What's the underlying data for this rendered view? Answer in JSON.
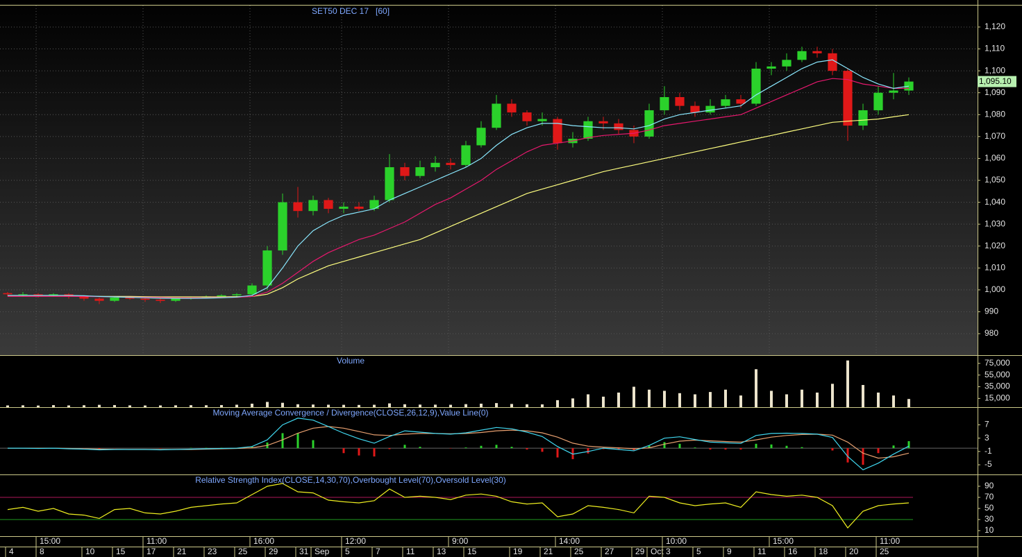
{
  "chart_data": [
    {
      "type": "candlestick",
      "title": "SET50 DEC 17   [60]",
      "categories": [
        "4",
        null,
        "8",
        null,
        null,
        "10",
        null,
        "15",
        null,
        "17",
        null,
        "21",
        null,
        "23",
        null,
        "25",
        null,
        "29",
        null,
        "31",
        "Sep",
        null,
        "5",
        null,
        "7",
        null,
        "11",
        null,
        "13",
        null,
        "15",
        null,
        null,
        "19",
        null,
        "21",
        null,
        "25",
        null,
        "27",
        null,
        "29",
        "Oct",
        "3",
        null,
        "5",
        null,
        "9",
        null,
        "11",
        null,
        "16",
        null,
        "18",
        null,
        "20",
        null,
        "25",
        null,
        null
      ],
      "time_labels": [
        null,
        null,
        "15:00",
        null,
        null,
        null,
        null,
        null,
        null,
        "11:00",
        null,
        null,
        null,
        null,
        null,
        null,
        "16:00",
        null,
        null,
        null,
        null,
        null,
        "12:00",
        null,
        null,
        null,
        null,
        null,
        null,
        "9:00",
        null,
        null,
        null,
        null,
        null,
        null,
        "14:00",
        null,
        null,
        null,
        null,
        null,
        null,
        "10:00",
        null,
        null,
        null,
        null,
        null,
        null,
        "15:00",
        null,
        null,
        null,
        null,
        null,
        null,
        "11:00",
        null,
        null
      ],
      "open": [
        998.5,
        998,
        998,
        997.5,
        998,
        997,
        996,
        995,
        996.5,
        996,
        995.5,
        995,
        996,
        996.5,
        997,
        997.5,
        998,
        1002,
        1018,
        1040,
        1036,
        1041,
        1037,
        1038,
        1037,
        1041,
        1056,
        1052,
        1056,
        1058,
        1057,
        1066,
        1074,
        1085,
        1081,
        1077,
        1078,
        1067,
        1069,
        1077,
        1076,
        1073,
        1070,
        1082,
        1088,
        1084,
        1081,
        1084,
        1087,
        1085,
        1101,
        1102,
        1105,
        1109,
        1108,
        1100,
        1075,
        1082,
        1090,
        1091
      ],
      "high": [
        999,
        999,
        998.5,
        998.5,
        998.5,
        997.5,
        996.5,
        997,
        997,
        996.5,
        996,
        996.5,
        997,
        997.5,
        998,
        998.5,
        1003,
        1020,
        1044,
        1047,
        1043,
        1042,
        1040,
        1040,
        1043,
        1062,
        1058,
        1059,
        1061,
        1060,
        1068,
        1077,
        1089,
        1087,
        1082,
        1081,
        1079,
        1072,
        1079,
        1079,
        1078,
        1075,
        1085,
        1093,
        1090,
        1086,
        1087,
        1089,
        1089,
        1104,
        1104,
        1108,
        1111,
        1111,
        1110,
        1101,
        1085,
        1093,
        1099,
        1097
      ],
      "low": [
        997,
        997,
        996.5,
        997,
        996,
        995,
        993.5,
        994.5,
        995.5,
        994.5,
        994,
        994.5,
        995.5,
        996,
        996.5,
        997,
        997,
        1000,
        1016,
        1033,
        1034,
        1035,
        1035,
        1036,
        1036,
        1040,
        1050,
        1051,
        1054,
        1055,
        1056,
        1065,
        1073,
        1079,
        1075,
        1075,
        1064,
        1065,
        1068,
        1073,
        1071,
        1067,
        1069,
        1080,
        1082,
        1079,
        1080,
        1083,
        1083,
        1084,
        1098,
        1100,
        1104,
        1106,
        1098,
        1068,
        1073,
        1080,
        1087,
        1089
      ],
      "close": [
        998,
        998,
        997.5,
        998,
        997,
        996,
        995,
        996.5,
        996,
        995.5,
        995,
        996,
        996.5,
        997,
        997.5,
        998,
        1002,
        1018,
        1040,
        1036,
        1041,
        1037,
        1038,
        1037,
        1041,
        1056,
        1052,
        1056,
        1058,
        1057,
        1066,
        1074,
        1085,
        1081,
        1077,
        1078,
        1067,
        1069,
        1077,
        1076,
        1073,
        1070,
        1082,
        1088,
        1084,
        1081,
        1084,
        1087,
        1085,
        1101,
        1102,
        1105,
        1109,
        1108,
        1100,
        1075,
        1082,
        1090,
        1091,
        1095.1
      ],
      "up_color": "#2bd12b",
      "down_color": "#e01818",
      "series": [
        {
          "color": "#ffff80",
          "values": [
            997,
            997,
            997,
            997,
            997,
            997,
            997,
            997,
            997,
            996.9,
            996.8,
            996.8,
            996.8,
            996.8,
            996.8,
            996.9,
            997,
            998,
            1001,
            1005,
            1008,
            1011,
            1013,
            1015,
            1017,
            1019,
            1021,
            1023,
            1026,
            1029,
            1032,
            1035,
            1038,
            1041,
            1044,
            1046,
            1048,
            1050,
            1052,
            1054,
            1055.5,
            1057,
            1058.5,
            1060,
            1061.5,
            1063,
            1064.5,
            1066,
            1067.5,
            1069,
            1070.5,
            1072,
            1073.5,
            1075,
            1076.5,
            1077,
            1077.5,
            1078,
            1079,
            1080
          ]
        },
        {
          "color": "#e8186e",
          "values": [
            997,
            997,
            997,
            997,
            997,
            997,
            996.9,
            996.8,
            996.7,
            996.6,
            996.5,
            996.4,
            996.4,
            996.4,
            996.5,
            996.6,
            997,
            999,
            1003,
            1008,
            1013,
            1017,
            1020,
            1023,
            1025,
            1028,
            1031,
            1035,
            1039,
            1042,
            1046,
            1050,
            1055,
            1059,
            1063,
            1066,
            1067,
            1068,
            1069.5,
            1070.5,
            1071,
            1071.5,
            1073,
            1075,
            1076,
            1077,
            1078,
            1079,
            1080,
            1083,
            1086,
            1089,
            1092,
            1095,
            1096.5,
            1096,
            1094,
            1093,
            1092,
            1092
          ]
        },
        {
          "color": "#8ae8ff",
          "values": [
            997.5,
            997.5,
            997.5,
            997.5,
            997.5,
            997.3,
            997,
            996.8,
            996.6,
            996.4,
            996.2,
            996.1,
            996.1,
            996.2,
            996.4,
            996.7,
            997.5,
            1001,
            1010,
            1020,
            1027,
            1031,
            1034,
            1035.5,
            1037,
            1041,
            1044,
            1047,
            1050,
            1053,
            1056,
            1060,
            1066,
            1071,
            1074,
            1076,
            1076,
            1075,
            1074.5,
            1074,
            1074,
            1073.5,
            1075,
            1078,
            1080,
            1081,
            1082,
            1083,
            1084,
            1089,
            1093,
            1097,
            1101,
            1104,
            1105,
            1101,
            1097,
            1094,
            1092,
            1093
          ]
        }
      ],
      "last_price": {
        "value": 1095.1,
        "label": "1,095.10"
      },
      "ylim": [
        970.2,
        1129.8
      ],
      "yticks": [
        980,
        990,
        {
          "value": 1000,
          "label": "1,000"
        },
        {
          "value": 1010,
          "label": "1,010"
        },
        {
          "value": 1020,
          "label": "1,020"
        },
        {
          "value": 1030,
          "label": "1,030"
        },
        {
          "value": 1040,
          "label": "1,040"
        },
        {
          "value": 1050,
          "label": "1,050"
        },
        {
          "value": 1060,
          "label": "1,060"
        },
        {
          "value": 1070,
          "label": "1,070"
        },
        {
          "value": 1080,
          "label": "1,080"
        },
        {
          "value": 1090,
          "label": "1,090"
        },
        {
          "value": 1100,
          "label": "1,100"
        },
        {
          "value": 1110,
          "label": "1,110"
        },
        {
          "value": 1120,
          "label": "1,120"
        }
      ],
      "grid": true
    },
    {
      "type": "bar",
      "title": "Volume",
      "color": "#ece4cc",
      "values": [
        3000,
        3200,
        2800,
        3500,
        3000,
        3300,
        4000,
        3600,
        3100,
        2900,
        3000,
        3200,
        3400,
        3300,
        3600,
        4200,
        6000,
        9000,
        7500,
        5000,
        4500,
        4200,
        4000,
        3800,
        4100,
        6500,
        5000,
        4400,
        4300,
        4100,
        5200,
        6000,
        7000,
        5500,
        5000,
        4800,
        12000,
        15000,
        22000,
        18000,
        25000,
        35000,
        30000,
        28000,
        24000,
        22000,
        26000,
        30000,
        20000,
        65000,
        28000,
        22000,
        30000,
        25000,
        40000,
        80000,
        38000,
        25000,
        20000,
        14000
      ],
      "ylim": [
        0,
        89100
      ],
      "yticks": [
        {
          "value": 15000,
          "label": "15,000"
        },
        {
          "value": 35000,
          "label": "35,000"
        },
        {
          "value": 55000,
          "label": "55,000"
        },
        {
          "value": 75000,
          "label": "75,000"
        }
      ]
    },
    {
      "type": "macd",
      "title": "Moving Average Convergence / Divergence(CLOSE,26,12,9),Value Line(0)",
      "series": [
        {
          "color": "#e8a070",
          "values": [
            0,
            0,
            0,
            0,
            -0.1,
            -0.2,
            -0.3,
            -0.35,
            -0.4,
            -0.4,
            -0.4,
            -0.4,
            -0.4,
            -0.3,
            -0.2,
            -0.1,
            0.1,
            0.8,
            2.5,
            4.5,
            6,
            6.5,
            6,
            5,
            4,
            3.8,
            4.2,
            4.4,
            4.4,
            4.3,
            4.4,
            4.7,
            5.2,
            5.4,
            5.2,
            4.6,
            3.3,
            1.5,
            0.6,
            0.3,
            0.1,
            -0.2,
            0.1,
            1.2,
            2.1,
            2.4,
            2.2,
            2,
            1.8,
            2.5,
            3.3,
            3.8,
            4.1,
            4.2,
            3.9,
            1.8,
            -1.5,
            -3,
            -2.6,
            -1.5
          ]
        },
        {
          "color": "#40d8f0",
          "values": [
            0,
            0,
            -0.1,
            0,
            -0.2,
            -0.3,
            -0.5,
            -0.4,
            -0.4,
            -0.4,
            -0.5,
            -0.4,
            -0.3,
            -0.2,
            -0.1,
            0,
            0.5,
            2.5,
            7,
            9,
            8.4,
            6.5,
            4.5,
            2.8,
            1.5,
            3.5,
            5.2,
            4.8,
            4.4,
            4.2,
            4.6,
            5.4,
            6.2,
            5.8,
            4.8,
            3.5,
            0.5,
            -1.8,
            -1,
            0,
            -0.4,
            -0.8,
            0.8,
            3,
            3.4,
            2.6,
            1.8,
            1.6,
            1.4,
            3.8,
            4.4,
            4.5,
            4.4,
            4.2,
            3.2,
            -2.5,
            -6.5,
            -4.5,
            -1.8,
            0.6
          ]
        }
      ],
      "histogram": {
        "up_color": "#2bd12b",
        "down_color": "#e01818",
        "values": [
          0,
          0,
          -0.1,
          0,
          -0.1,
          -0.1,
          -0.2,
          -0.05,
          0,
          0,
          -0.1,
          0,
          0.1,
          0.1,
          0.1,
          0.1,
          0.4,
          1.7,
          4.5,
          4.5,
          2.4,
          0,
          -1.5,
          -2.2,
          -2.5,
          -0.3,
          1,
          0.4,
          0,
          -0.1,
          0.2,
          0.7,
          1,
          0.4,
          -0.4,
          -1.1,
          -2.8,
          -3.3,
          -1.6,
          -0.3,
          -0.5,
          -0.6,
          0.7,
          1.8,
          1.3,
          0.2,
          -0.4,
          -0.4,
          -0.4,
          1.3,
          1.1,
          0.7,
          0.3,
          0,
          -0.7,
          -4.3,
          -5,
          -1.5,
          0.8,
          2.1
        ]
      },
      "value_line": 0,
      "ylim": [
        -7.9,
        12.3
      ],
      "yticks": [
        -5,
        -1,
        3,
        7
      ]
    },
    {
      "type": "line",
      "title": "Relative Strength Index(CLOSE,14,30,70),Overbought Level(70),Oversold Level(30)",
      "color": "#f0f020",
      "values": [
        48,
        52,
        45,
        50,
        40,
        38,
        32,
        48,
        50,
        42,
        40,
        45,
        52,
        55,
        58,
        60,
        75,
        90,
        95,
        80,
        78,
        65,
        62,
        60,
        64,
        85,
        70,
        72,
        70,
        66,
        74,
        76,
        72,
        62,
        58,
        60,
        35,
        40,
        55,
        52,
        48,
        42,
        72,
        70,
        60,
        55,
        58,
        60,
        52,
        80,
        75,
        72,
        74,
        70,
        55,
        15,
        45,
        55,
        58,
        60
      ],
      "overbought": 70,
      "oversold": 30,
      "overbought_color": "#b0185a",
      "oversold_color": "#1f9a1f",
      "ylim": [
        0,
        111.25
      ],
      "yticks": [
        10,
        30,
        50,
        70,
        90
      ]
    }
  ]
}
